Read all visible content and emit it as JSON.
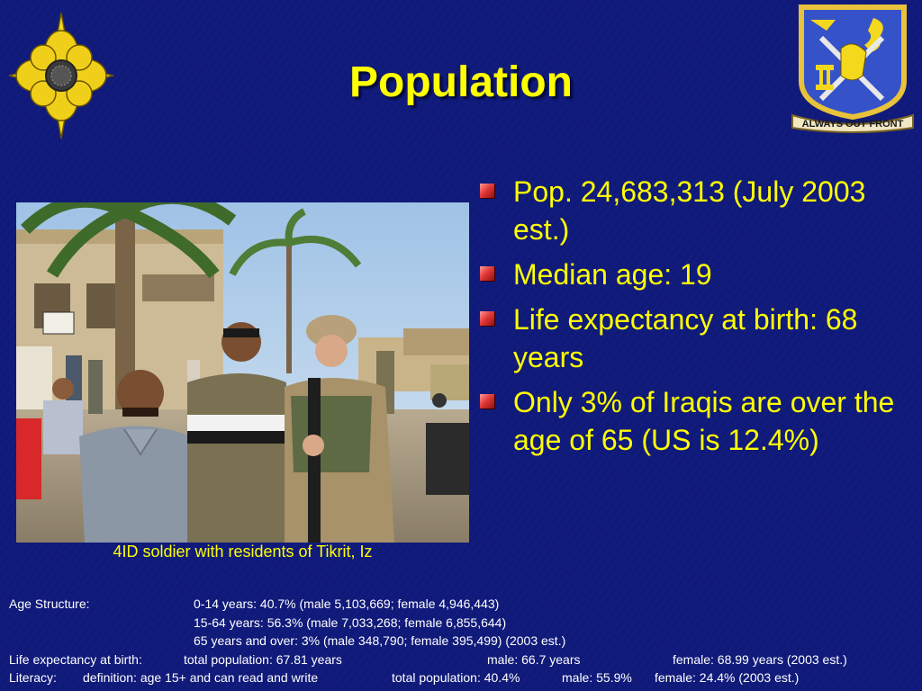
{
  "slide": {
    "title": "Population",
    "photo_caption": "4ID soldier with residents of Tikrit, Iz",
    "right_insignia_motto": "ALWAYS OUT FRONT",
    "bullets": [
      "Pop. 24,683,313 (July 2003 est.)",
      "Median age: 19",
      "Life expectancy at birth: 68 years",
      "Only 3% of Iraqis are over the age of 65 (US is 12.4%)"
    ]
  },
  "footer": {
    "age_structure_label": "Age Structure:",
    "age_0_14": "0-14 years: 40.7% (male 5,103,669; female 4,946,443)",
    "age_15_64": "15-64 years: 56.3% (male 7,033,268; female 6,855,644)",
    "age_65_over": "65 years and over: 3% (male 348,790; female 395,499) (2003 est.)",
    "life_label": "Life expectancy at birth:",
    "life_total": "total population: 67.81 years",
    "life_male": "male: 66.7 years",
    "life_female": "female: 68.99 years (2003 est.)",
    "literacy_label": "Literacy:",
    "literacy_definition": "definition: age 15+ and can read and write",
    "literacy_total": "total population: 40.4%",
    "literacy_male": "male: 55.9%",
    "literacy_female": "female: 24.4% (2003 est.)"
  },
  "colors": {
    "background": "#101a7a",
    "title": "#ffff00",
    "bullet_text": "#ffff00",
    "bullet_marker": "#e33a3a",
    "footer_text": "#ffffff"
  },
  "icons": [
    "military-intelligence-insignia-icon",
    "regimental-crest-icon"
  ]
}
